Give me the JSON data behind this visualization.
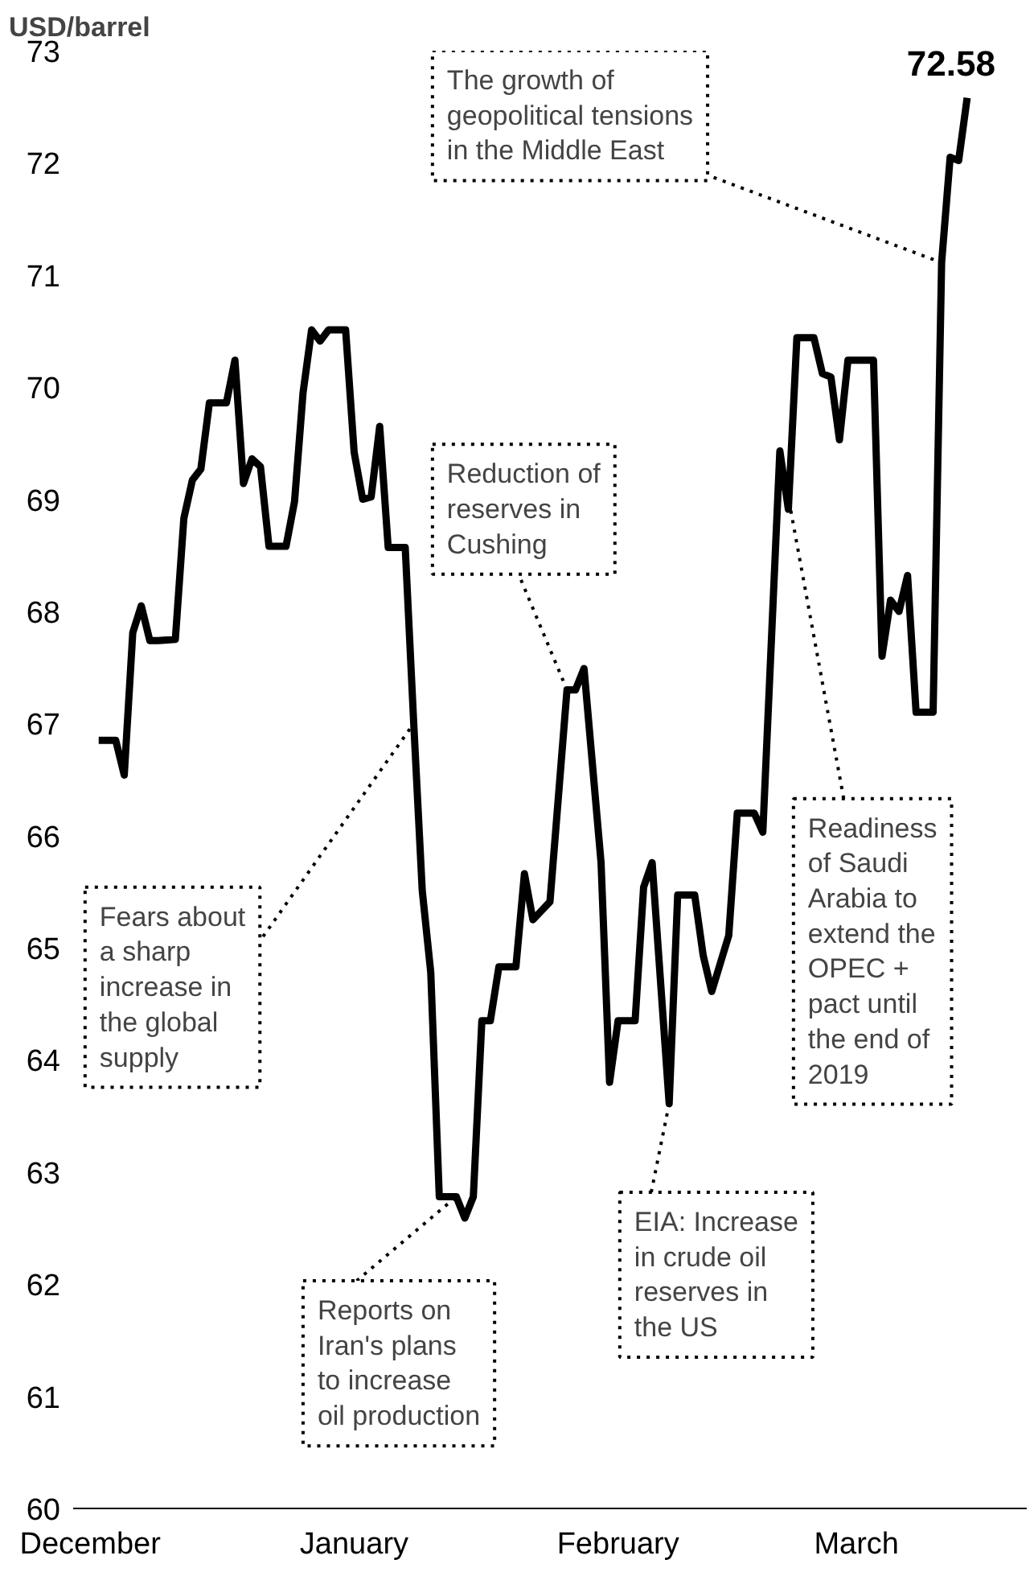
{
  "chart_data": {
    "type": "line",
    "ylabel": "USD/barrel",
    "x": [
      "2018-12-02",
      "2018-12-04",
      "2018-12-05",
      "2018-12-06",
      "2018-12-07",
      "2018-12-08",
      "2018-12-09",
      "2018-12-11",
      "2018-12-12",
      "2018-12-13",
      "2018-12-14",
      "2018-12-15",
      "2018-12-17",
      "2018-12-18",
      "2018-12-19",
      "2018-12-20",
      "2018-12-21",
      "2018-12-22",
      "2018-12-24",
      "2018-12-25",
      "2018-12-26",
      "2018-12-27",
      "2018-12-28",
      "2018-12-29",
      "2018-12-31",
      "2019-01-01",
      "2019-01-02",
      "2019-01-03",
      "2019-01-04",
      "2019-01-05",
      "2019-01-07",
      "2019-01-08",
      "2019-01-09",
      "2019-01-10",
      "2019-01-11",
      "2019-01-13",
      "2019-01-14",
      "2019-01-15",
      "2019-01-16",
      "2019-01-17",
      "2019-01-18",
      "2019-01-20",
      "2019-01-21",
      "2019-01-22",
      "2019-01-24",
      "2019-01-26",
      "2019-01-27",
      "2019-01-28",
      "2019-01-30",
      "2019-01-31",
      "2019-02-01",
      "2019-02-03",
      "2019-02-04",
      "2019-02-05",
      "2019-02-07",
      "2019-02-08",
      "2019-02-10",
      "2019-02-11",
      "2019-02-12",
      "2019-02-14",
      "2019-02-15",
      "2019-02-17",
      "2019-02-18",
      "2019-02-20",
      "2019-02-21",
      "2019-02-22",
      "2019-02-24",
      "2019-02-25",
      "2019-02-26",
      "2019-02-27",
      "2019-02-28",
      "2019-03-03",
      "2019-03-04",
      "2019-03-05",
      "2019-03-06",
      "2019-03-07",
      "2019-03-08",
      "2019-03-10",
      "2019-03-11",
      "2019-03-12",
      "2019-03-13",
      "2019-03-14"
    ],
    "series": [
      {
        "color": "#000000",
        "values": [
          66.85,
          66.85,
          66.54,
          67.81,
          68.05,
          67.74,
          67.74,
          67.75,
          68.83,
          69.17,
          69.27,
          69.86,
          69.86,
          70.24,
          69.14,
          69.36,
          69.29,
          68.58,
          68.58,
          68.98,
          69.95,
          70.51,
          70.41,
          70.51,
          70.51,
          69.42,
          69.0,
          69.02,
          69.65,
          68.57,
          68.57,
          67.0,
          65.51,
          64.78,
          62.78,
          62.78,
          62.59,
          62.78,
          64.35,
          64.35,
          64.83,
          64.83,
          65.66,
          65.25,
          65.41,
          67.3,
          67.3,
          67.49,
          65.76,
          63.8,
          64.35,
          64.35,
          65.54,
          65.76,
          63.61,
          65.47,
          65.47,
          64.93,
          64.61,
          65.11,
          66.2,
          66.2,
          66.03,
          69.43,
          68.91,
          70.44,
          70.44,
          70.12,
          70.09,
          69.53,
          70.24,
          70.24,
          67.6,
          68.1,
          68.0,
          68.32,
          67.1,
          67.1,
          71.11,
          72.05,
          72.02,
          72.58
        ],
        "value_labels": [
          null,
          null,
          null,
          null,
          null,
          null,
          null,
          null,
          null,
          null,
          null,
          null,
          null,
          null,
          null,
          null,
          null,
          null,
          null,
          null,
          null,
          null,
          null,
          null,
          null,
          null,
          null,
          null,
          null,
          null,
          null,
          null,
          null,
          null,
          null,
          null,
          null,
          null,
          null,
          null,
          null,
          null,
          null,
          null,
          null,
          null,
          null,
          null,
          null,
          null,
          null,
          null,
          null,
          null,
          null,
          null,
          null,
          null,
          null,
          null,
          null,
          null,
          null,
          null,
          null,
          null,
          null,
          null,
          null,
          null,
          null,
          null,
          null,
          null,
          null,
          null,
          null,
          null,
          null,
          null,
          null,
          "72.58"
        ]
      }
    ],
    "xlim": [
      "2018-11-29",
      "2019-03-21"
    ],
    "ylim": [
      60,
      73
    ],
    "xticks": [
      {
        "value": "2018-12-01",
        "label": "December"
      },
      {
        "value": "2019-01-01",
        "label": "January"
      },
      {
        "value": "2019-02-01",
        "label": "February"
      },
      {
        "value": "2019-03-01",
        "label": "March"
      }
    ],
    "yticks": [
      60,
      61,
      62,
      63,
      64,
      65,
      66,
      67,
      68,
      69,
      70,
      71,
      72,
      73
    ],
    "grid": false,
    "marker": "none",
    "line_style": "solid",
    "annotations": [
      {
        "text": "The growth of\ngeopolitical tensions\nin the Middle East",
        "x": "2019-03-11",
        "y": 71.11
      },
      {
        "text": "Reduction of\nreserves in\nCushing",
        "x": "2019-01-26",
        "y": 67.3
      },
      {
        "text": "Fears about\na sharp\nincrease in\nthe global\nsupply",
        "x": "2019-01-08",
        "y": 67.0
      },
      {
        "text": "Reports on\nIran's plans\nto increase\noil production",
        "x": "2019-01-13",
        "y": 62.78
      },
      {
        "text": "EIA: Increase\nin crude oil\nreserves in\nthe US",
        "x": "2019-02-07",
        "y": 63.61
      },
      {
        "text": "Readiness\nof Saudi\nArabia to\nextend the\nOPEC +\npact until\nthe end of\n2019",
        "x": "2019-02-20",
        "y": 69.43
      }
    ]
  }
}
